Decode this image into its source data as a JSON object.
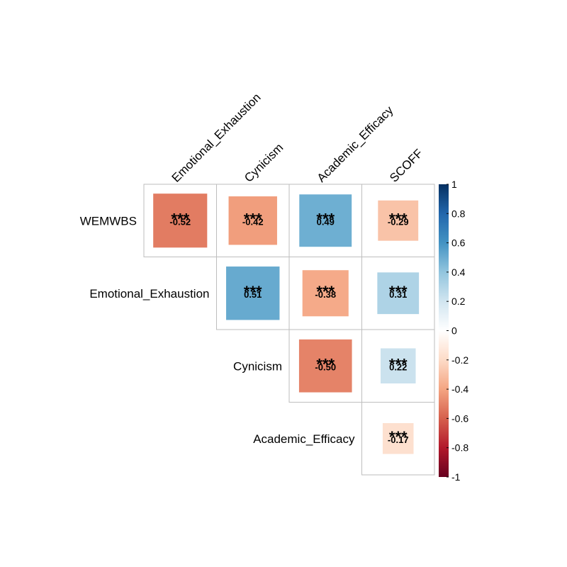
{
  "chart_data": {
    "type": "heatmap",
    "style": "upper-triangular correlation matrix with squares sized by |r|",
    "columns": [
      "Emotional_Exhaustion",
      "Cynicism",
      "Academic_Efficacy",
      "SCOFF"
    ],
    "rows": [
      "WEMWBS",
      "Emotional_Exhaustion",
      "Cynicism",
      "Academic_Efficacy"
    ],
    "values": [
      [
        -0.52,
        -0.42,
        0.49,
        -0.29
      ],
      [
        null,
        0.51,
        -0.38,
        0.31
      ],
      [
        null,
        null,
        -0.5,
        0.22
      ],
      [
        null,
        null,
        null,
        -0.17
      ]
    ],
    "value_labels": [
      [
        "-0.52",
        "-0.42",
        "0.49",
        "-0.29"
      ],
      [
        null,
        "0.51",
        "-0.38",
        "0.31"
      ],
      [
        null,
        null,
        "-0.50",
        "0.22"
      ],
      [
        null,
        null,
        null,
        "-0.17"
      ]
    ],
    "significance": [
      [
        "***",
        "***",
        "***",
        "***"
      ],
      [
        null,
        "***",
        "***",
        "***"
      ],
      [
        null,
        null,
        "***",
        "***"
      ],
      [
        null,
        null,
        null,
        "***"
      ]
    ],
    "colorbar": {
      "range": [
        -1,
        1
      ],
      "ticks": [
        "1",
        "0.8",
        "0.6",
        "0.4",
        "0.2",
        "0",
        "-0.2",
        "-0.4",
        "-0.6",
        "-0.8",
        "-1"
      ],
      "tick_values": [
        1,
        0.8,
        0.6,
        0.4,
        0.2,
        0,
        -0.2,
        -0.4,
        -0.6,
        -0.8,
        -1
      ],
      "colors": [
        "#67001F",
        "#B2182B",
        "#D6604D",
        "#F4A582",
        "#FDDBC7",
        "#FFFFFF",
        "#D1E5F0",
        "#92C5DE",
        "#4393C3",
        "#2166AC",
        "#053061"
      ]
    },
    "grid_color": "#BEBEBE"
  }
}
